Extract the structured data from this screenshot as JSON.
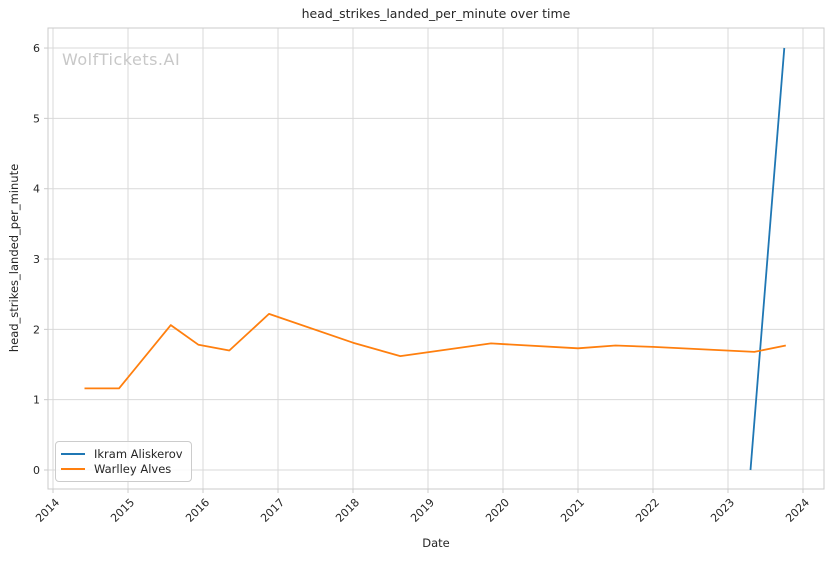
{
  "watermark": "WolfTickets.AI",
  "chart_data": {
    "type": "line",
    "title": "head_strikes_landed_per_minute over time",
    "xlabel": "Date",
    "ylabel": "head_strikes_landed_per_minute",
    "grid": true,
    "legend_position": "lower left",
    "xlim": [
      2013.933,
      2024.28
    ],
    "ylim": [
      -0.27,
      6.285
    ],
    "x_ticks": [
      2014,
      2015,
      2016,
      2017,
      2018,
      2019,
      2020,
      2021,
      2022,
      2023,
      2024
    ],
    "x_tick_labels": [
      "2014",
      "2015",
      "2016",
      "2017",
      "2018",
      "2019",
      "2020",
      "2021",
      "2022",
      "2023",
      "2024"
    ],
    "y_ticks": [
      0,
      1,
      2,
      3,
      4,
      5,
      6
    ],
    "y_tick_labels": [
      "0",
      "1",
      "2",
      "3",
      "4",
      "5",
      "6"
    ],
    "series": [
      {
        "name": "Ikram Aliskerov",
        "color": "#1f77b4",
        "points": [
          [
            2023.3,
            0.0
          ],
          [
            2023.75,
            6.0
          ]
        ]
      },
      {
        "name": "Warlley Alves",
        "color": "#ff7f0e",
        "points": [
          [
            2014.42,
            1.16
          ],
          [
            2014.88,
            1.16
          ],
          [
            2015.57,
            2.06
          ],
          [
            2015.94,
            1.78
          ],
          [
            2016.35,
            1.7
          ],
          [
            2016.88,
            2.22
          ],
          [
            2018.0,
            1.81
          ],
          [
            2018.63,
            1.62
          ],
          [
            2019.84,
            1.8
          ],
          [
            2021.0,
            1.73
          ],
          [
            2021.5,
            1.77
          ],
          [
            2022.0,
            1.75
          ],
          [
            2023.35,
            1.68
          ],
          [
            2023.77,
            1.77
          ]
        ]
      }
    ],
    "style": {
      "grid_color": "#d9d9d9",
      "border_color": "#cbcbcb",
      "tick_color": "#cbcbcb",
      "text_color": "#262626",
      "background": "#ffffff"
    }
  }
}
